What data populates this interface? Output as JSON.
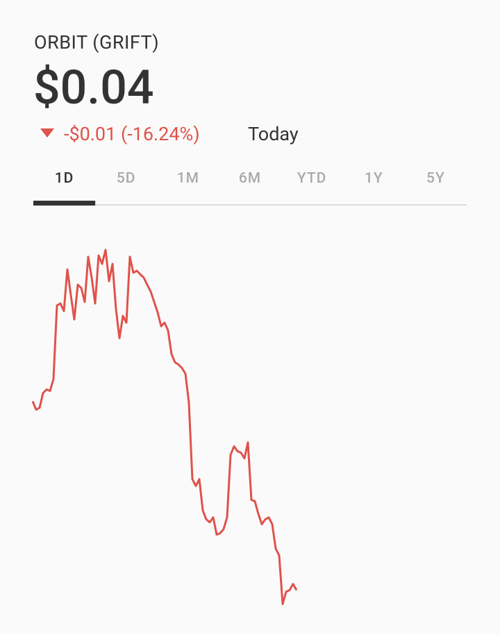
{
  "header": {
    "ticker": "ORBIT (GRIFT)",
    "price": "$0.04",
    "change": "-$0.01 (-16.24%)",
    "period": "Today"
  },
  "tabs": {
    "items": [
      "1D",
      "5D",
      "1M",
      "6M",
      "YTD",
      "1Y",
      "5Y"
    ],
    "selected_index": 0
  },
  "chart_data": {
    "type": "line",
    "color": "#e0524a",
    "ylim": [
      0.04058,
      0.05816
    ],
    "values": [
      0.05038,
      0.05,
      0.05009,
      0.05075,
      0.05091,
      0.05085,
      0.05138,
      0.05471,
      0.0548,
      0.05446,
      0.05634,
      0.05518,
      0.05408,
      0.05565,
      0.0555,
      0.05487,
      0.05691,
      0.05597,
      0.0548,
      0.05697,
      0.05659,
      0.05722,
      0.05581,
      0.05659,
      0.05455,
      0.05323,
      0.05424,
      0.05393,
      0.05691,
      0.05619,
      0.05628,
      0.05612,
      0.05597,
      0.05565,
      0.05534,
      0.05487,
      0.0544,
      0.05377,
      0.05393,
      0.05358,
      0.05251,
      0.05214,
      0.05204,
      0.05188,
      0.05163,
      0.05031,
      0.04686,
      0.04655,
      0.04686,
      0.04545,
      0.04504,
      0.04491,
      0.04513,
      0.04435,
      0.04441,
      0.0446,
      0.04513,
      0.04796,
      0.04834,
      0.04812,
      0.04805,
      0.0478,
      0.04852,
      0.04592,
      0.04586,
      0.04529,
      0.04482,
      0.04504,
      0.04513,
      0.04482,
      0.04372,
      0.04341,
      0.04121,
      0.04177,
      0.04184,
      0.04212,
      0.04184,
      null,
      null,
      null,
      null,
      null,
      null,
      null,
      null,
      null,
      null,
      null,
      null,
      null,
      null,
      null,
      null,
      null,
      null,
      null,
      null,
      null,
      null,
      null,
      null,
      null,
      null,
      null,
      null,
      null,
      null,
      null,
      null,
      null,
      null,
      null,
      null,
      null,
      null,
      null,
      null,
      null,
      null,
      null,
      null,
      null,
      null,
      null,
      null,
      null
    ]
  }
}
